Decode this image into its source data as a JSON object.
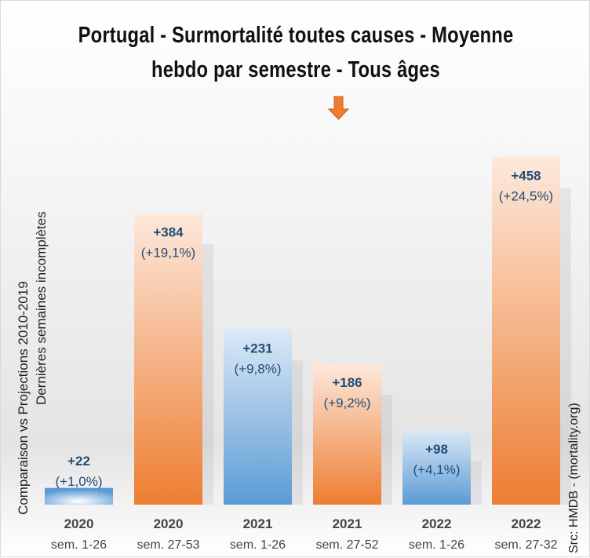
{
  "chart_data": {
    "type": "bar",
    "title_line1": "Portugal - Surmortalité toutes causes - Moyenne",
    "title_line2": "hebdo par semestre - Tous âges",
    "ylabel_line1": "Comparaison vs Projections 2010-2019",
    "ylabel_line2": "Dernières semaines incomplètes",
    "source": "Src: HMDB - (mortality.org)",
    "categories": [
      {
        "year": "2020",
        "weeks": "sem. 1-26"
      },
      {
        "year": "2020",
        "weeks": "sem. 27-53"
      },
      {
        "year": "2021",
        "weeks": "sem. 1-26"
      },
      {
        "year": "2021",
        "weeks": "sem. 27-52"
      },
      {
        "year": "2022",
        "weeks": "sem. 1-26"
      },
      {
        "year": "2022",
        "weeks": "sem. 27-32"
      }
    ],
    "values": [
      22,
      384,
      231,
      186,
      98,
      458
    ],
    "value_labels": [
      "+22",
      "+384",
      "+231",
      "+186",
      "+98",
      "+458"
    ],
    "percent_labels": [
      "(+1,0%)",
      "(+19,1%)",
      "(+9,8%)",
      "(+9,2%)",
      "(+4,1%)",
      "(+24,5%)"
    ],
    "colors": [
      "blue",
      "orange",
      "blue",
      "orange",
      "blue",
      "orange"
    ],
    "palette": {
      "orange": "#ed7d31",
      "orange_light": "#fbe3d3",
      "blue": "#5b9bd5",
      "blue_light": "#dbe9f6",
      "label": "#1f4e79"
    },
    "ylim": [
      0,
      470
    ],
    "grid": false,
    "legend": "none",
    "annotation": "down-arrow-marker"
  }
}
